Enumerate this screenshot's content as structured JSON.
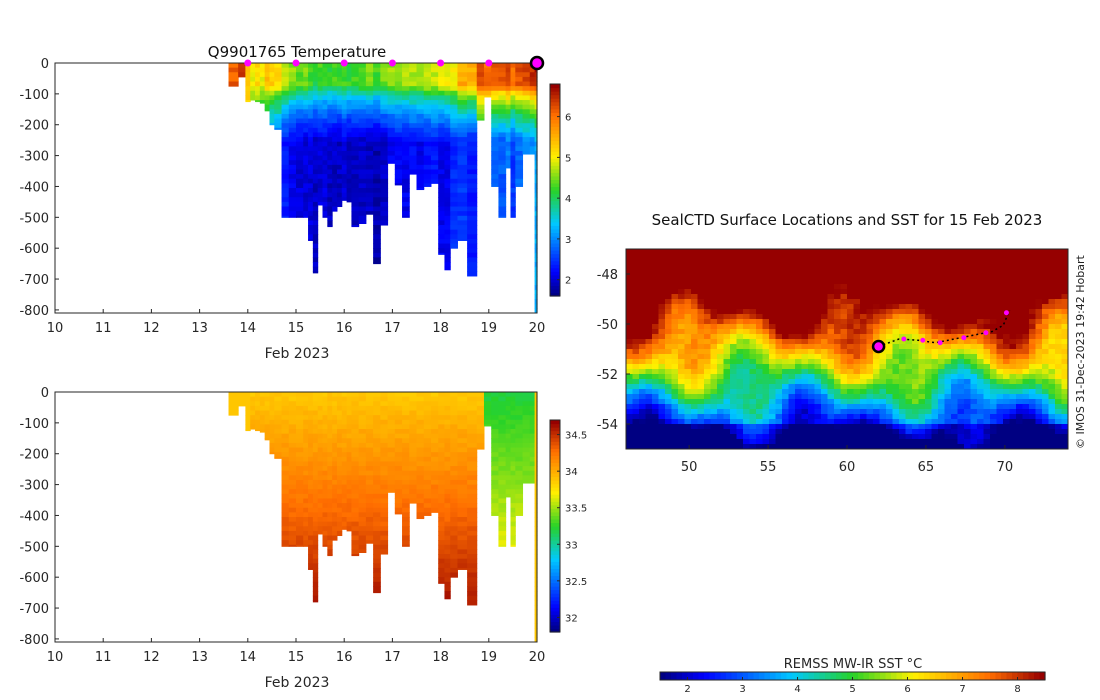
{
  "chart_data": [
    {
      "type": "heatmap",
      "title": "Q9901765  Temperature",
      "xlabel": "Feb 2023",
      "xticks": [
        "10",
        "11",
        "12",
        "13",
        "14",
        "15",
        "16",
        "17",
        "18",
        "19",
        "20"
      ],
      "yticks": [
        "0",
        "-100",
        "-200",
        "-300",
        "-400",
        "-500",
        "-600",
        "-700",
        "-800"
      ],
      "xlim": [
        10,
        20
      ],
      "ylim": [
        -810,
        0
      ],
      "colorbar_ticks": [
        "2",
        "3",
        "4",
        "5",
        "6"
      ],
      "colorbar_range": [
        1.6,
        6.8
      ],
      "profile_markers_day": [
        14,
        15,
        16,
        17,
        18,
        19
      ],
      "current_position_day": 20,
      "profiles": [
        {
          "day": 13.6,
          "depth": -75,
          "surface": 6.2,
          "deep": 6.2
        },
        {
          "day": 13.8,
          "depth": -45,
          "surface": 6.5,
          "deep": 6.5
        },
        {
          "day": 13.95,
          "depth": -125,
          "surface": 5.3,
          "deep": 5.2
        },
        {
          "day": 14.05,
          "depth": -120,
          "surface": 5.0,
          "deep": 3.8
        },
        {
          "day": 14.15,
          "depth": -125,
          "surface": 5.2,
          "deep": 3.6
        },
        {
          "day": 14.25,
          "depth": -130,
          "surface": 5.0,
          "deep": 3.5
        },
        {
          "day": 14.35,
          "depth": -155,
          "surface": 5.4,
          "deep": 3.2
        },
        {
          "day": 14.45,
          "depth": -200,
          "surface": 5.3,
          "deep": 2.8
        },
        {
          "day": 14.55,
          "depth": -215,
          "surface": 5.2,
          "deep": 2.7
        },
        {
          "day": 14.7,
          "depth": -500,
          "surface": 4.8,
          "deep": 2.3
        },
        {
          "day": 14.85,
          "depth": -500,
          "surface": 4.6,
          "deep": 2.1
        },
        {
          "day": 15.0,
          "depth": -500,
          "surface": 4.4,
          "deep": 2.0
        },
        {
          "day": 15.15,
          "depth": -500,
          "surface": 4.5,
          "deep": 2.0
        },
        {
          "day": 15.25,
          "depth": -575,
          "surface": 4.3,
          "deep": 2.0
        },
        {
          "day": 15.35,
          "depth": -680,
          "surface": 4.1,
          "deep": 1.9
        },
        {
          "day": 15.45,
          "depth": -460,
          "surface": 4.3,
          "deep": 2.0
        },
        {
          "day": 15.55,
          "depth": -500,
          "surface": 4.2,
          "deep": 2.0
        },
        {
          "day": 15.65,
          "depth": -530,
          "surface": 4.2,
          "deep": 1.9
        },
        {
          "day": 15.75,
          "depth": -480,
          "surface": 4.3,
          "deep": 1.9
        },
        {
          "day": 15.85,
          "depth": -465,
          "surface": 4.2,
          "deep": 1.9
        },
        {
          "day": 15.95,
          "depth": -445,
          "surface": 4.3,
          "deep": 2.0
        },
        {
          "day": 16.05,
          "depth": -450,
          "surface": 4.2,
          "deep": 1.9
        },
        {
          "day": 16.15,
          "depth": -530,
          "surface": 4.3,
          "deep": 1.9
        },
        {
          "day": 16.3,
          "depth": -520,
          "surface": 4.4,
          "deep": 1.9
        },
        {
          "day": 16.45,
          "depth": -490,
          "surface": 4.5,
          "deep": 1.9
        },
        {
          "day": 16.6,
          "depth": -650,
          "surface": 4.3,
          "deep": 1.8
        },
        {
          "day": 16.75,
          "depth": -525,
          "surface": 4.5,
          "deep": 1.9
        },
        {
          "day": 16.9,
          "depth": -325,
          "surface": 4.6,
          "deep": 2.1
        },
        {
          "day": 17.05,
          "depth": -395,
          "surface": 4.6,
          "deep": 2.1
        },
        {
          "day": 17.2,
          "depth": -500,
          "surface": 4.7,
          "deep": 2.1
        },
        {
          "day": 17.35,
          "depth": -360,
          "surface": 4.7,
          "deep": 2.2
        },
        {
          "day": 17.5,
          "depth": -410,
          "surface": 4.7,
          "deep": 2.1
        },
        {
          "day": 17.65,
          "depth": -400,
          "surface": 4.8,
          "deep": 2.2
        },
        {
          "day": 17.8,
          "depth": -390,
          "surface": 4.8,
          "deep": 2.3
        },
        {
          "day": 17.95,
          "depth": -620,
          "surface": 5.0,
          "deep": 2.1
        },
        {
          "day": 18.08,
          "depth": -670,
          "surface": 5.0,
          "deep": 2.1
        },
        {
          "day": 18.2,
          "depth": -600,
          "surface": 5.1,
          "deep": 2.4
        },
        {
          "day": 18.35,
          "depth": -575,
          "surface": 5.6,
          "deep": 2.5
        },
        {
          "day": 18.55,
          "depth": -690,
          "surface": 5.6,
          "deep": 2.3
        },
        {
          "day": 18.75,
          "depth": -185,
          "surface": 6.3,
          "deep": 3.5
        },
        {
          "day": 18.9,
          "depth": -110,
          "surface": 6.1,
          "deep": 4.0
        },
        {
          "day": 19.05,
          "depth": -400,
          "surface": 6.2,
          "deep": 2.8
        },
        {
          "day": 19.2,
          "depth": -500,
          "surface": 6.2,
          "deep": 2.7
        },
        {
          "day": 19.35,
          "depth": -340,
          "surface": 6.4,
          "deep": 2.9
        },
        {
          "day": 19.45,
          "depth": -500,
          "surface": 6.1,
          "deep": 2.5
        },
        {
          "day": 19.55,
          "depth": -400,
          "surface": 6.3,
          "deep": 2.8
        },
        {
          "day": 19.7,
          "depth": -295,
          "surface": 6.4,
          "deep": 3.0
        },
        {
          "day": 19.85,
          "depth": -295,
          "surface": 6.5,
          "deep": 3.0
        },
        {
          "day": 19.95,
          "depth": -810,
          "surface": 6.6,
          "deep": 3.2
        }
      ]
    },
    {
      "type": "heatmap",
      "title": "",
      "xlabel": "Feb 2023",
      "xticks": [
        "10",
        "11",
        "12",
        "13",
        "14",
        "15",
        "16",
        "17",
        "18",
        "19",
        "20"
      ],
      "yticks": [
        "0",
        "-100",
        "-200",
        "-300",
        "-400",
        "-500",
        "-600",
        "-700",
        "-800"
      ],
      "xlim": [
        10,
        20
      ],
      "ylim": [
        -810,
        0
      ],
      "colorbar_ticks": [
        "32",
        "32.5",
        "33",
        "33.5",
        "34",
        "34.5"
      ],
      "colorbar_range": [
        31.8,
        34.7
      ],
      "profiles_from": "same profile layout as temperature panel",
      "surface_salinity": 33.9,
      "deep_salinity": 34.6,
      "fresh_profiles_day_range": [
        18.8,
        20.0
      ],
      "fresh_surface_salinity": 33.2,
      "fresh_deep_salinity": 33.8
    },
    {
      "type": "heatmap",
      "title": "SealCTD Surface Locations and SST for 15 Feb 2023",
      "xticks": [
        "50",
        "55",
        "60",
        "65",
        "70"
      ],
      "yticks": [
        "-48",
        "-50",
        "-52",
        "-54"
      ],
      "xlim": [
        46,
        74
      ],
      "ylim": [
        -55,
        -47
      ],
      "colorbar_label": "REMSS MW-IR SST °C",
      "colorbar_ticks": [
        "2",
        "3",
        "4",
        "5",
        "6",
        "7",
        "8"
      ],
      "colorbar_range": [
        1.5,
        8.5
      ],
      "track": [
        [
          62.0,
          -50.9
        ],
        [
          63.3,
          -50.6
        ],
        [
          64.5,
          -50.65
        ],
        [
          65.6,
          -50.75
        ],
        [
          66.8,
          -50.6
        ],
        [
          68.0,
          -50.45
        ],
        [
          69.2,
          -50.3
        ],
        [
          69.9,
          -50.05
        ],
        [
          70.3,
          -49.45
        ]
      ],
      "track_markers": [
        [
          63.6,
          -50.6
        ],
        [
          64.8,
          -50.65
        ],
        [
          65.9,
          -50.75
        ],
        [
          67.4,
          -50.55
        ],
        [
          68.8,
          -50.35
        ],
        [
          70.1,
          -49.55
        ]
      ],
      "current_position": [
        62.0,
        -50.9
      ]
    }
  ],
  "copyright": "© IMOS 31-Dec-2023 19:42 Hobart",
  "colors": {
    "marker": "#ff00ff",
    "track": "#000000",
    "axis": "#262626"
  }
}
